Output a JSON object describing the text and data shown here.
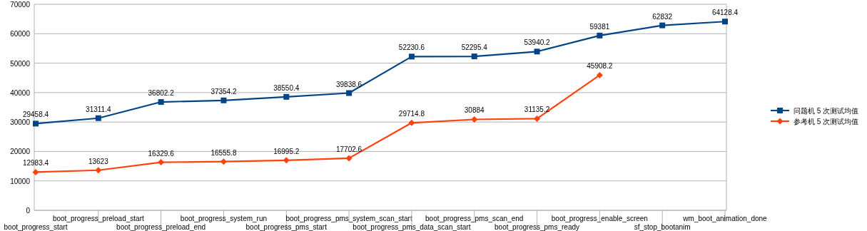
{
  "chart_data": {
    "type": "line",
    "categories": [
      "boot_progress_start",
      "boot_progress_preload_start",
      "boot_progress_preload_end",
      "boot_progress_system_run",
      "boot_progress_pms_start",
      "boot_progress_pms_system_scan_start",
      "boot_progress_pms_data_scan_start",
      "boot_progress_pms_scan_end",
      "boot_progress_pms_ready",
      "boot_progress_enable_screen",
      "sf_stop_bootanim",
      "wm_boot_animation_done"
    ],
    "series": [
      {
        "name": "问题机 5 次测试均值",
        "color": "#004586",
        "marker": "square",
        "values": [
          29458.4,
          31311.4,
          36802.2,
          37354.2,
          38550.4,
          39838.6,
          52230.6,
          52295.4,
          53940.2,
          59381,
          62832,
          64128.4
        ]
      },
      {
        "name": "参考机 5 次测试均值",
        "color": "#ff420e",
        "marker": "diamond",
        "values": [
          12983.4,
          13623,
          16329.6,
          16555.8,
          16995.2,
          17702.6,
          29714.8,
          30884,
          31135.2,
          45908.2,
          null,
          null
        ]
      }
    ],
    "ylim": [
      0,
      70000
    ],
    "yticks": [
      0,
      10000,
      20000,
      30000,
      40000,
      50000,
      60000,
      70000
    ],
    "grid": "y",
    "legend": "right",
    "data_labels": true,
    "line_style": "solid"
  }
}
